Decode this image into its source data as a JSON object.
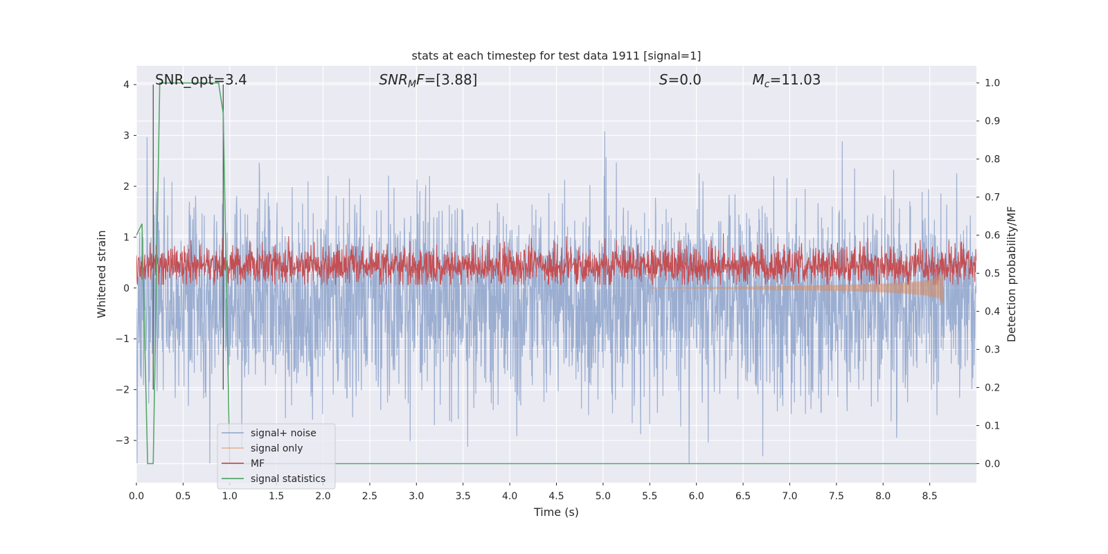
{
  "chart_data": {
    "type": "line",
    "title": "stats at each timestep for test data 1911 [signal=1]",
    "xlabel": "Time (s)",
    "ylabel": "Whitened strain",
    "y2label": "Detection probability/MF",
    "xlim": [
      0.0,
      9.0
    ],
    "ylim": [
      -3.83,
      4.37
    ],
    "y2lim": [
      -0.05,
      1.045
    ],
    "xticks": [
      0.0,
      0.5,
      1.0,
      1.5,
      2.0,
      2.5,
      3.0,
      3.5,
      4.0,
      4.5,
      5.0,
      5.5,
      6.0,
      6.5,
      7.0,
      7.5,
      8.0,
      8.5
    ],
    "xtick_labels": [
      "0.0",
      "0.5",
      "1.0",
      "1.5",
      "2.0",
      "2.5",
      "3.0",
      "3.5",
      "4.0",
      "4.5",
      "5.0",
      "5.5",
      "6.0",
      "6.5",
      "7.0",
      "7.5",
      "8.0",
      "8.5"
    ],
    "yticks": [
      -3,
      -2,
      -1,
      0,
      1,
      2,
      3,
      4
    ],
    "ytick_labels": [
      "−3",
      "−2",
      "−1",
      "0",
      "1",
      "2",
      "3",
      "4"
    ],
    "y2ticks": [
      0.0,
      0.1,
      0.2,
      0.3,
      0.4,
      0.5,
      0.6,
      0.7,
      0.8,
      0.9,
      1.0
    ],
    "y2tick_labels": [
      "0.0",
      "0.1",
      "0.2",
      "0.3",
      "0.4",
      "0.5",
      "0.6",
      "0.7",
      "0.8",
      "0.9",
      "1.0"
    ],
    "grid": true,
    "legend_position": "lower-left",
    "annotations": [
      {
        "label": "SNR_opt=3.4",
        "x": 0.2,
        "y": 4.1
      },
      {
        "label": "SNR",
        "sub": "M",
        "suffix": "F=[3.88]",
        "italic": true,
        "x": 2.6,
        "y": 4.1
      },
      {
        "label": "S",
        "suffix": "=0.0",
        "italic": true,
        "x": 5.6,
        "y": 4.1
      },
      {
        "label": "M",
        "sub": "c",
        "suffix": "=11.03",
        "italic": true,
        "x": 6.6,
        "y": 4.1
      }
    ],
    "vlines": [
      0.18,
      0.93
    ],
    "series": [
      {
        "name": "signal+ noise",
        "color": "#4c72b0",
        "opacity": 0.5,
        "kind": "noise",
        "approx_range": [
          -3.45,
          4.0
        ],
        "std": 1.0
      },
      {
        "name": "signal only",
        "color": "#dd8452",
        "opacity": 0.5,
        "kind": "chirp",
        "envelope": {
          "x": [
            5.5,
            6.0,
            6.5,
            7.0,
            7.5,
            8.0,
            8.4,
            8.6,
            8.65
          ],
          "amp": [
            0.005,
            0.01,
            0.02,
            0.04,
            0.06,
            0.09,
            0.14,
            0.22,
            0.35
          ]
        },
        "end_x": 8.65
      },
      {
        "name": "MF",
        "color": "#c44e52",
        "kind": "band",
        "axis": "right",
        "baseline": 0.52,
        "band": [
          0.46,
          0.58
        ],
        "approx_range": [
          0.47,
          0.62
        ]
      },
      {
        "name": "signal statistics",
        "color": "#55a868",
        "kind": "line",
        "axis": "right",
        "x": [
          0.0,
          0.06,
          0.12,
          0.18,
          0.25,
          0.88,
          0.93,
          1.0,
          1.05,
          9.0
        ],
        "y": [
          0.6,
          0.63,
          0.0,
          0.0,
          1.0,
          1.0,
          0.92,
          0.0,
          0.0,
          0.0
        ]
      }
    ]
  }
}
